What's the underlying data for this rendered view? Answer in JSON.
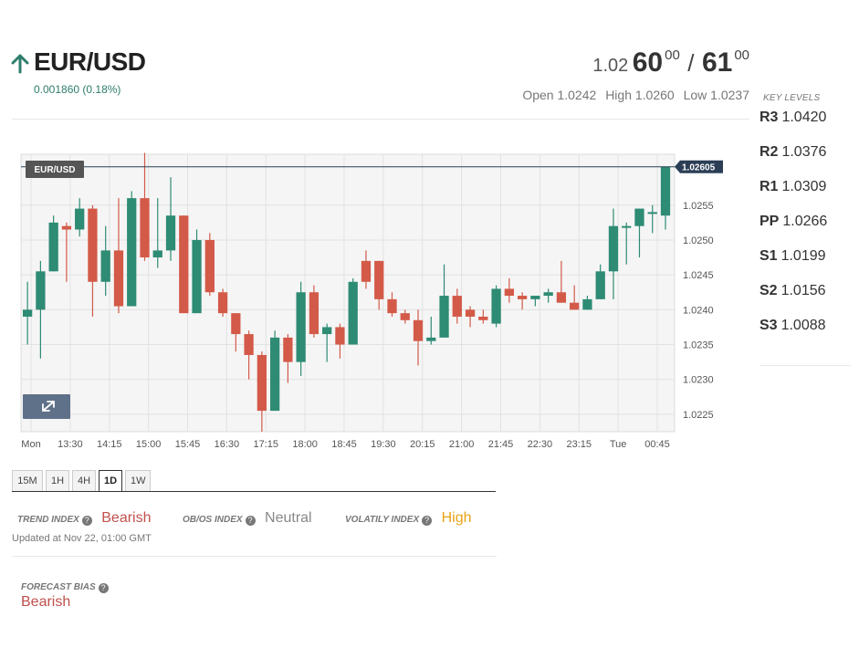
{
  "header": {
    "pair": "EUR/USD",
    "change": "0.001860 (0.18%)",
    "change_color": "#2e7d6b",
    "arrow_icon": "arrow-up-icon"
  },
  "quote": {
    "bid_prefix": "1.02",
    "bid_big": "60",
    "bid_sup": "00",
    "separator": "/",
    "ask_big": "61",
    "ask_sup": "00"
  },
  "ohl": {
    "open": "Open 1.0242",
    "high": "High 1.0260",
    "low": "Low 1.0237"
  },
  "key_levels": {
    "title": "KEY LEVELS",
    "items": [
      {
        "name": "R3",
        "value": "1.0420"
      },
      {
        "name": "R2",
        "value": "1.0376"
      },
      {
        "name": "R1",
        "value": "1.0309"
      },
      {
        "name": "PP",
        "value": "1.0266"
      },
      {
        "name": "S1",
        "value": "1.0199"
      },
      {
        "name": "S2",
        "value": "1.0156"
      },
      {
        "name": "S3",
        "value": "1.0088"
      }
    ]
  },
  "chart_data": {
    "type": "candlestick",
    "symbol_label": "EUR/USD",
    "last_price_label": "1.02605",
    "last_price": 1.02605,
    "ylim": [
      1.02225,
      1.02623
    ],
    "y_ticks": [
      "1.0225",
      "1.0230",
      "1.0235",
      "1.0240",
      "1.0245",
      "1.0250",
      "1.0255"
    ],
    "x_ticks": [
      "Mon",
      "13:30",
      "14:15",
      "15:00",
      "15:45",
      "16:30",
      "17:15",
      "18:00",
      "18:45",
      "19:30",
      "20:15",
      "21:00",
      "21:45",
      "22:30",
      "23:15",
      "Tue",
      "00:45"
    ],
    "grid": true,
    "up_color": "#2e8b74",
    "down_color": "#d35a48",
    "candles": [
      {
        "o": 1.0239,
        "h": 1.0244,
        "l": 1.0235,
        "c": 1.024
      },
      {
        "o": 1.024,
        "h": 1.0247,
        "l": 1.0233,
        "c": 1.02455
      },
      {
        "o": 1.02455,
        "h": 1.02535,
        "l": 1.02455,
        "c": 1.02525
      },
      {
        "o": 1.0252,
        "h": 1.02525,
        "l": 1.0244,
        "c": 1.02515
      },
      {
        "o": 1.02515,
        "h": 1.0256,
        "l": 1.02505,
        "c": 1.02545
      },
      {
        "o": 1.02545,
        "h": 1.0255,
        "l": 1.0239,
        "c": 1.0244
      },
      {
        "o": 1.0244,
        "h": 1.0252,
        "l": 1.0242,
        "c": 1.02485
      },
      {
        "o": 1.02485,
        "h": 1.0256,
        "l": 1.02395,
        "c": 1.02405
      },
      {
        "o": 1.02405,
        "h": 1.0257,
        "l": 1.02405,
        "c": 1.0256
      },
      {
        "o": 1.0256,
        "h": 1.02625,
        "l": 1.0247,
        "c": 1.02475
      },
      {
        "o": 1.02475,
        "h": 1.0256,
        "l": 1.0246,
        "c": 1.02485
      },
      {
        "o": 1.02485,
        "h": 1.0259,
        "l": 1.0247,
        "c": 1.02535
      },
      {
        "o": 1.02535,
        "h": 1.02535,
        "l": 1.02395,
        "c": 1.02395
      },
      {
        "o": 1.02395,
        "h": 1.02515,
        "l": 1.02395,
        "c": 1.025
      },
      {
        "o": 1.025,
        "h": 1.0251,
        "l": 1.0242,
        "c": 1.02425
      },
      {
        "o": 1.02425,
        "h": 1.0243,
        "l": 1.0239,
        "c": 1.02395
      },
      {
        "o": 1.02395,
        "h": 1.02395,
        "l": 1.0234,
        "c": 1.02365
      },
      {
        "o": 1.02365,
        "h": 1.0237,
        "l": 1.023,
        "c": 1.02335
      },
      {
        "o": 1.02335,
        "h": 1.0234,
        "l": 1.02225,
        "c": 1.02255
      },
      {
        "o": 1.02255,
        "h": 1.0237,
        "l": 1.02255,
        "c": 1.0236
      },
      {
        "o": 1.0236,
        "h": 1.02365,
        "l": 1.02295,
        "c": 1.02325
      },
      {
        "o": 1.02325,
        "h": 1.0244,
        "l": 1.02305,
        "c": 1.02425
      },
      {
        "o": 1.02425,
        "h": 1.02435,
        "l": 1.0236,
        "c": 1.02365
      },
      {
        "o": 1.02365,
        "h": 1.0238,
        "l": 1.02325,
        "c": 1.02375
      },
      {
        "o": 1.02375,
        "h": 1.0238,
        "l": 1.0233,
        "c": 1.0235
      },
      {
        "o": 1.0235,
        "h": 1.02445,
        "l": 1.0235,
        "c": 1.0244
      },
      {
        "o": 1.0247,
        "h": 1.02485,
        "l": 1.0243,
        "c": 1.0244
      },
      {
        "o": 1.0247,
        "h": 1.0247,
        "l": 1.024,
        "c": 1.02415
      },
      {
        "o": 1.02415,
        "h": 1.02425,
        "l": 1.0239,
        "c": 1.02395
      },
      {
        "o": 1.02395,
        "h": 1.024,
        "l": 1.0238,
        "c": 1.02385
      },
      {
        "o": 1.02385,
        "h": 1.024,
        "l": 1.0232,
        "c": 1.02355
      },
      {
        "o": 1.02355,
        "h": 1.0239,
        "l": 1.0235,
        "c": 1.0236
      },
      {
        "o": 1.0236,
        "h": 1.02465,
        "l": 1.0236,
        "c": 1.0242
      },
      {
        "o": 1.0242,
        "h": 1.0243,
        "l": 1.0238,
        "c": 1.0239
      },
      {
        "o": 1.024,
        "h": 1.02405,
        "l": 1.02375,
        "c": 1.0239
      },
      {
        "o": 1.0239,
        "h": 1.024,
        "l": 1.0238,
        "c": 1.02385
      },
      {
        "o": 1.0238,
        "h": 1.02435,
        "l": 1.02375,
        "c": 1.0243
      },
      {
        "o": 1.0243,
        "h": 1.02445,
        "l": 1.0241,
        "c": 1.0242
      },
      {
        "o": 1.0242,
        "h": 1.02425,
        "l": 1.024,
        "c": 1.02415
      },
      {
        "o": 1.02415,
        "h": 1.0242,
        "l": 1.02405,
        "c": 1.0242
      },
      {
        "o": 1.0242,
        "h": 1.0243,
        "l": 1.0241,
        "c": 1.02425
      },
      {
        "o": 1.02425,
        "h": 1.0247,
        "l": 1.0241,
        "c": 1.0241
      },
      {
        "o": 1.0241,
        "h": 1.02435,
        "l": 1.024,
        "c": 1.024
      },
      {
        "o": 1.024,
        "h": 1.0242,
        "l": 1.024,
        "c": 1.02415
      },
      {
        "o": 1.02415,
        "h": 1.02465,
        "l": 1.02415,
        "c": 1.02455
      },
      {
        "o": 1.02455,
        "h": 1.02545,
        "l": 1.02415,
        "c": 1.0252
      },
      {
        "o": 1.0252,
        "h": 1.02525,
        "l": 1.02465,
        "c": 1.0252
      },
      {
        "o": 1.0252,
        "h": 1.02545,
        "l": 1.02475,
        "c": 1.02545
      },
      {
        "o": 1.0254,
        "h": 1.0255,
        "l": 1.0251,
        "c": 1.0254
      },
      {
        "o": 1.02535,
        "h": 1.02605,
        "l": 1.02515,
        "c": 1.02605
      }
    ]
  },
  "timeframes": [
    "15M",
    "1H",
    "4H",
    "1D",
    "1W"
  ],
  "timeframe_active": "1D",
  "indexes": [
    {
      "label": "TREND INDEX",
      "value": "Bearish",
      "color": "#c0504d"
    },
    {
      "label": "OB/OS INDEX",
      "value": "Neutral",
      "color": "#888888"
    },
    {
      "label": "VOLATILY INDEX",
      "value": "High",
      "color": "#e8a317"
    }
  ],
  "updated": "Updated at Nov 22, 01:00 GMT",
  "forecast": {
    "label": "FORECAST BIAS",
    "value": "Bearish"
  }
}
